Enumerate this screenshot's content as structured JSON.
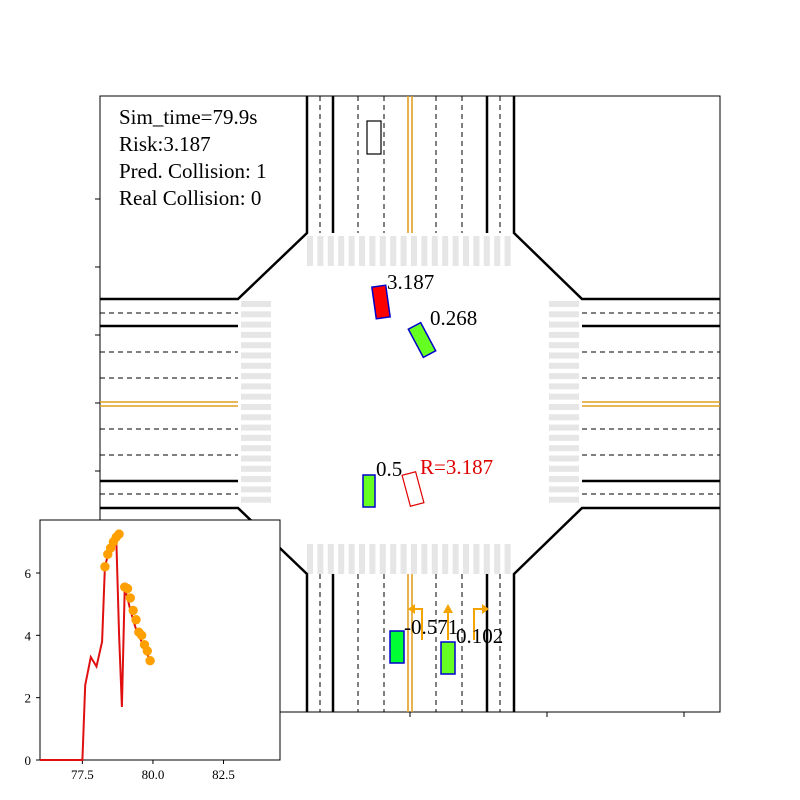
{
  "info": {
    "sim_time": "Sim_time=79.9s",
    "risk": "Risk:3.187",
    "pred_collision": "Pred. Collision: 1",
    "real_collision": "Real Collision: 0"
  },
  "vehicles": [
    {
      "id": "ego",
      "label": "3.187",
      "fill": "#ff0000",
      "edge": "#0000cc"
    },
    {
      "id": "v2",
      "label": "0.268",
      "fill": "#66ff22",
      "edge": "#0000cc"
    },
    {
      "id": "v3",
      "label": "0.5",
      "fill": "#66ff22",
      "edge": "#0000cc"
    },
    {
      "id": "v4",
      "label": "-0.571",
      "fill": "#00ff33",
      "edge": "#0000cc"
    },
    {
      "id": "v5",
      "label": "0.102",
      "fill": "#66ff22",
      "edge": "#0000cc"
    }
  ],
  "predicted_marker": {
    "label": "R=3.187",
    "edge": "#e00000"
  },
  "colors": {
    "center_line": "#e0a020",
    "crosswalk": "#e6e6e6",
    "arrow": "#f5a300",
    "risk_line": "#e01010",
    "risk_marker": "#ffa000"
  },
  "chart_data": {
    "type": "line",
    "title": "",
    "xlabel": "",
    "ylabel": "",
    "xlim": [
      76,
      84.5
    ],
    "ylim": [
      0,
      7.7
    ],
    "xticks": [
      77.5,
      80.0,
      82.5
    ],
    "xtick_labels": [
      "77.5",
      "80.0",
      "82.5"
    ],
    "yticks": [
      0,
      2,
      4,
      6
    ],
    "ytick_labels": [
      "0",
      "2",
      "4",
      "6"
    ],
    "line": {
      "x": [
        76.0,
        77.5,
        77.6,
        77.8,
        78.0,
        78.2,
        78.3,
        78.5,
        78.7,
        78.8,
        78.9,
        79.0,
        79.1,
        79.2,
        79.3,
        79.4,
        79.5,
        79.6,
        79.7,
        79.8,
        79.9
      ],
      "y": [
        0,
        0,
        2.4,
        3.3,
        3.0,
        3.8,
        6.2,
        6.9,
        7.2,
        4.0,
        1.7,
        5.5,
        5.2,
        4.8,
        4.5,
        4.2,
        4.0,
        3.8,
        3.6,
        3.4,
        3.187
      ]
    },
    "markers": {
      "x": [
        78.3,
        78.4,
        78.5,
        78.6,
        78.7,
        78.8,
        79.0,
        79.1,
        79.2,
        79.3,
        79.4,
        79.5,
        79.6,
        79.7,
        79.8,
        79.9
      ],
      "y": [
        6.2,
        6.6,
        6.8,
        7.0,
        7.15,
        7.25,
        5.55,
        5.5,
        5.2,
        4.8,
        4.5,
        4.1,
        4.0,
        3.7,
        3.5,
        3.187
      ]
    },
    "grid": false,
    "legend": "none"
  }
}
